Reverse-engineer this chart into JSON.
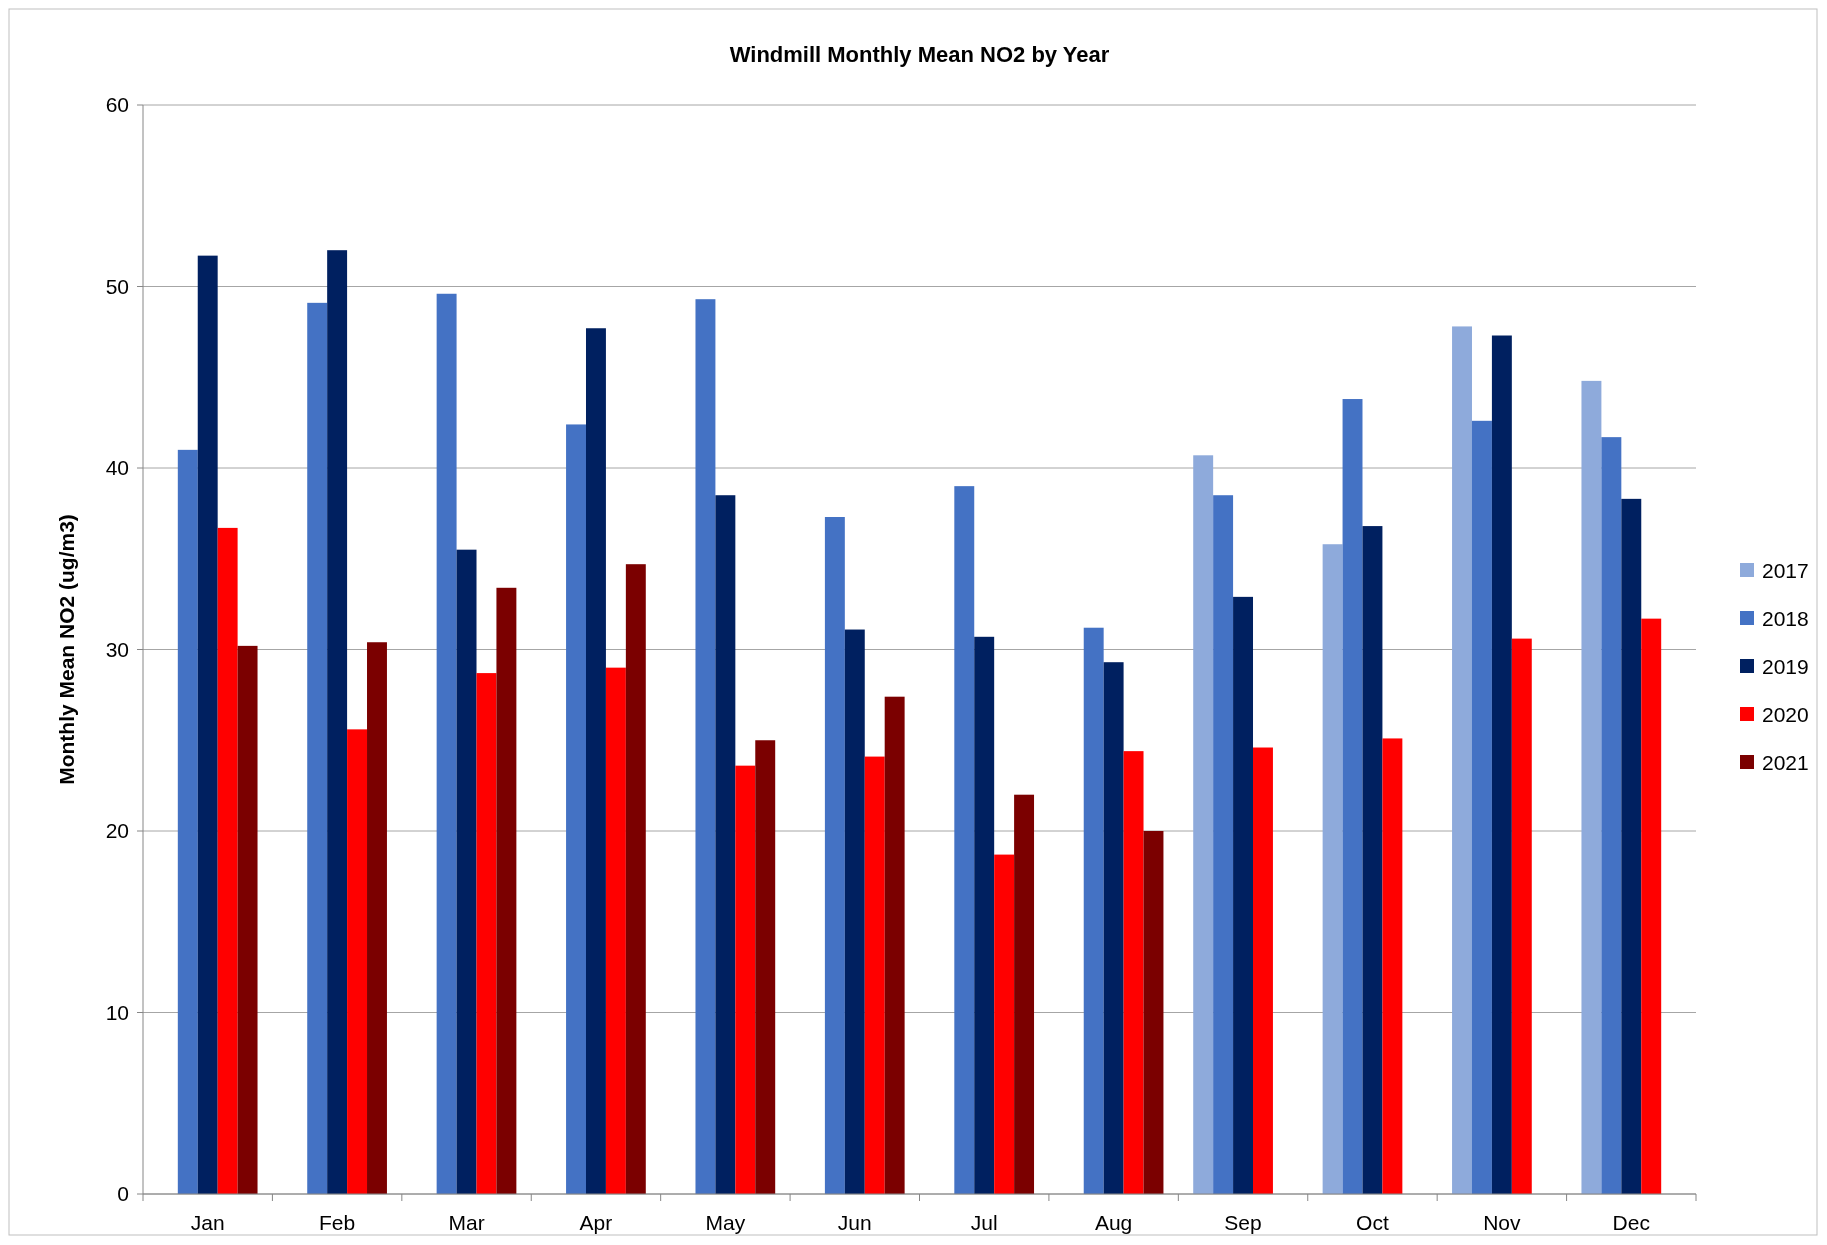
{
  "chart_data": {
    "type": "bar",
    "title": "Windmill Monthly Mean NO2 by Year",
    "ylabel": "Monthly Mean NO2 (ug/m3)",
    "categories": [
      "Jan",
      "Feb",
      "Mar",
      "Apr",
      "May",
      "Jun",
      "Jul",
      "Aug",
      "Sep",
      "Oct",
      "Nov",
      "Dec"
    ],
    "series": [
      {
        "name": "2017",
        "color": "#8eaadb",
        "values": [
          null,
          null,
          null,
          null,
          null,
          null,
          null,
          null,
          40.7,
          35.8,
          47.8,
          44.8
        ]
      },
      {
        "name": "2018",
        "color": "#4472c4",
        "values": [
          41.0,
          49.1,
          49.6,
          42.4,
          49.3,
          37.3,
          39.0,
          31.2,
          38.5,
          43.8,
          42.6,
          41.7
        ]
      },
      {
        "name": "2019",
        "color": "#002060",
        "values": [
          51.7,
          52.0,
          35.5,
          47.7,
          38.5,
          31.1,
          30.7,
          29.3,
          32.9,
          36.8,
          47.3,
          38.3
        ]
      },
      {
        "name": "2020",
        "color": "#ff0000",
        "values": [
          36.7,
          25.6,
          28.7,
          29.0,
          23.6,
          24.1,
          18.7,
          24.4,
          24.6,
          25.1,
          30.6,
          31.7
        ]
      },
      {
        "name": "2021",
        "color": "#7b0000",
        "values": [
          30.2,
          30.4,
          33.4,
          34.7,
          25.0,
          27.4,
          22.0,
          20.0,
          null,
          null,
          null,
          null
        ]
      }
    ],
    "ylim": [
      0,
      60
    ],
    "yticks": [
      0,
      10,
      20,
      30,
      40,
      50,
      60
    ],
    "grid": "y",
    "legend": "right"
  }
}
